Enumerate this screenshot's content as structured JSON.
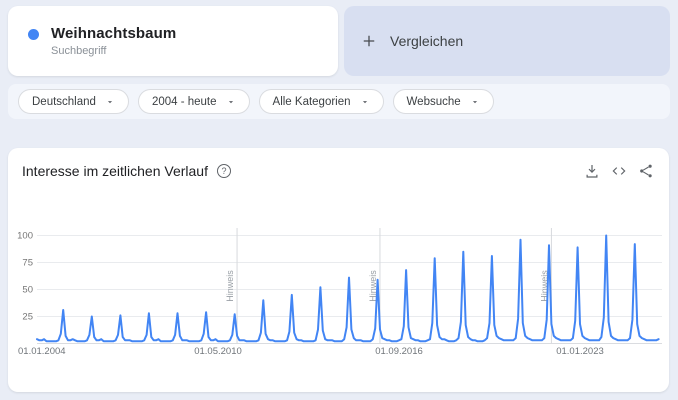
{
  "term_card": {
    "term": "Weihnachtsbaum",
    "type_label": "Suchbegriff",
    "dot_color": "#4285f4"
  },
  "compare_card": {
    "label": "Vergleichen",
    "plus_icon": "plus",
    "background": "#d8dff1"
  },
  "filters": [
    {
      "label": "Deutschland"
    },
    {
      "label": "2004 - heute"
    },
    {
      "label": "Alle Kategorien"
    },
    {
      "label": "Websuche"
    }
  ],
  "chart_card": {
    "title": "Interesse im zeitlichen Verlauf",
    "help_icon": "?",
    "toolbar_icons": [
      "download",
      "embed-code",
      "share"
    ]
  },
  "chart_data": {
    "type": "line",
    "title": "Interesse im zeitlichen Verlauf",
    "series_name": "Weihnachtsbaum",
    "line_color": "#4285f4",
    "grid": "horizontal",
    "ylim": [
      0,
      100
    ],
    "y_ticks": [
      25,
      50,
      75,
      100
    ],
    "x_ticks": [
      {
        "label": "01.01.2004",
        "date": "2004-01"
      },
      {
        "label": "01.05.2010",
        "date": "2010-05"
      },
      {
        "label": "01.09.2016",
        "date": "2016-09"
      },
      {
        "label": "01.01.2023",
        "date": "2023-01"
      }
    ],
    "annotations": [
      {
        "label": "Hinweis",
        "date": "2011-01"
      },
      {
        "label": "Hinweis",
        "date": "2016-01"
      },
      {
        "label": "Hinweis",
        "date": "2022-01"
      }
    ],
    "x_range": [
      "2004-01",
      "2025-10"
    ],
    "monthly": [
      {
        "year": 2004,
        "values": [
          4,
          3,
          3,
          4,
          2,
          2,
          2,
          2,
          2,
          3,
          9,
          31
        ]
      },
      {
        "year": 2005,
        "values": [
          7,
          3,
          3,
          4,
          3,
          2,
          2,
          2,
          2,
          3,
          8,
          25
        ]
      },
      {
        "year": 2006,
        "values": [
          6,
          3,
          3,
          4,
          2,
          2,
          2,
          2,
          2,
          3,
          8,
          26
        ]
      },
      {
        "year": 2007,
        "values": [
          6,
          3,
          3,
          3,
          2,
          2,
          2,
          2,
          2,
          3,
          8,
          28
        ]
      },
      {
        "year": 2008,
        "values": [
          6,
          3,
          3,
          4,
          2,
          2,
          2,
          2,
          2,
          3,
          8,
          28
        ]
      },
      {
        "year": 2009,
        "values": [
          7,
          3,
          3,
          3,
          2,
          2,
          2,
          2,
          2,
          3,
          9,
          29
        ]
      },
      {
        "year": 2010,
        "values": [
          6,
          3,
          3,
          4,
          2,
          2,
          2,
          2,
          2,
          3,
          8,
          27
        ]
      },
      {
        "year": 2011,
        "values": [
          7,
          3,
          3,
          3,
          2,
          2,
          2,
          2,
          2,
          3,
          10,
          40
        ]
      },
      {
        "year": 2012,
        "values": [
          9,
          4,
          3,
          3,
          2,
          2,
          2,
          2,
          2,
          3,
          11,
          45
        ]
      },
      {
        "year": 2013,
        "values": [
          10,
          4,
          3,
          3,
          2,
          2,
          2,
          2,
          2,
          3,
          13,
          52
        ]
      },
      {
        "year": 2014,
        "values": [
          12,
          4,
          3,
          3,
          3,
          2,
          2,
          2,
          2,
          4,
          15,
          61
        ]
      },
      {
        "year": 2015,
        "values": [
          13,
          5,
          3,
          3,
          3,
          2,
          2,
          2,
          2,
          4,
          14,
          59
        ]
      },
      {
        "year": 2016,
        "values": [
          13,
          5,
          4,
          3,
          3,
          2,
          2,
          2,
          3,
          4,
          16,
          68
        ]
      },
      {
        "year": 2017,
        "values": [
          15,
          5,
          4,
          3,
          3,
          2,
          2,
          2,
          3,
          4,
          19,
          79
        ]
      },
      {
        "year": 2018,
        "values": [
          17,
          6,
          4,
          4,
          3,
          2,
          2,
          2,
          3,
          5,
          20,
          85
        ]
      },
      {
        "year": 2019,
        "values": [
          17,
          6,
          4,
          3,
          3,
          2,
          2,
          2,
          3,
          5,
          19,
          81
        ]
      },
      {
        "year": 2020,
        "values": [
          17,
          7,
          5,
          4,
          3,
          3,
          3,
          3,
          3,
          5,
          23,
          96
        ]
      },
      {
        "year": 2021,
        "values": [
          19,
          7,
          5,
          4,
          3,
          3,
          3,
          3,
          3,
          5,
          22,
          91
        ]
      },
      {
        "year": 2022,
        "values": [
          18,
          7,
          5,
          4,
          3,
          3,
          3,
          3,
          3,
          5,
          21,
          89
        ]
      },
      {
        "year": 2023,
        "values": [
          18,
          7,
          5,
          4,
          3,
          3,
          3,
          3,
          3,
          6,
          24,
          100
        ]
      },
      {
        "year": 2024,
        "values": [
          20,
          7,
          5,
          4,
          3,
          3,
          3,
          3,
          3,
          5,
          22,
          92
        ]
      },
      {
        "year": 2025,
        "values": [
          18,
          7,
          5,
          4,
          3,
          3,
          3,
          3,
          3,
          4
        ]
      }
    ]
  }
}
